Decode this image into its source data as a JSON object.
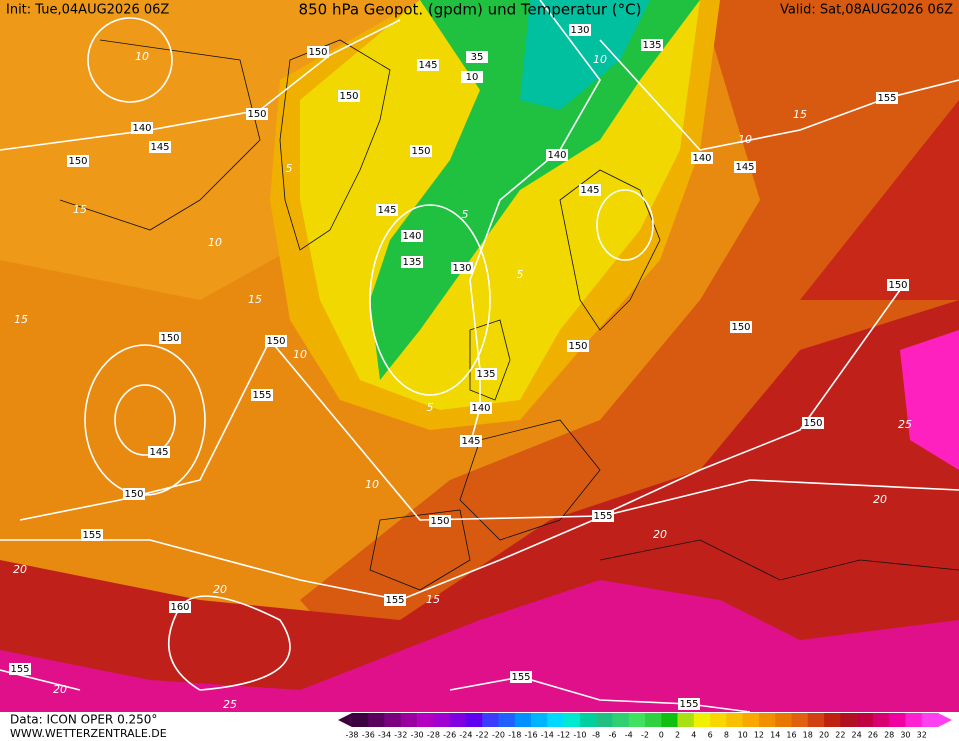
{
  "header": {
    "init": "Init: Tue,04AUG2026 06Z",
    "title": "850 hPa Geopot. (gpdm) und Temperatur (°C)",
    "valid": "Valid: Sat,08AUG2026 06Z"
  },
  "geopotential_labels": [
    "150",
    "145",
    "35",
    "10",
    "130",
    "135",
    "155",
    "150",
    "150",
    "140",
    "145",
    "150",
    "150",
    "140",
    "140",
    "145",
    "145",
    "145",
    "140",
    "135",
    "130",
    "150",
    "150",
    "150",
    "150",
    "150",
    "135",
    "155",
    "140",
    "145",
    "150",
    "145",
    "150",
    "150",
    "155",
    "155",
    "155",
    "160",
    "155",
    "155",
    "155"
  ],
  "temperature_labels": [
    "10",
    "10",
    "5",
    "15",
    "15",
    "10",
    "5",
    "5",
    "10",
    "15",
    "20",
    "20",
    "25",
    "20",
    "20",
    "25",
    "15",
    "10",
    "10",
    "5",
    "15",
    "20"
  ],
  "footer": {
    "source": "Data: ICON OPER 0.250°",
    "site": "WWW.WETTERZENTRALE.DE"
  },
  "color_scale": {
    "ticks": [
      -38,
      -36,
      -34,
      -32,
      -30,
      -28,
      -26,
      -24,
      -22,
      -20,
      -18,
      -16,
      -14,
      -12,
      -10,
      -8,
      -6,
      -4,
      -2,
      0,
      2,
      4,
      6,
      8,
      10,
      12,
      14,
      16,
      18,
      20,
      22,
      24,
      26,
      28,
      30,
      32
    ],
    "colors": [
      "#3d0040",
      "#5a005f",
      "#7a0080",
      "#9a00a0",
      "#b400c0",
      "#a000d0",
      "#8000e0",
      "#6000f0",
      "#3c3cff",
      "#2060ff",
      "#0090ff",
      "#00b4ff",
      "#00d8ff",
      "#00e8d0",
      "#00d0a0",
      "#20c080",
      "#30d070",
      "#40e060",
      "#30d040",
      "#10c010",
      "#a8e010",
      "#f0f000",
      "#f8d800",
      "#f8c000",
      "#f8a800",
      "#f09000",
      "#e87800",
      "#e06010",
      "#d04010",
      "#c02010",
      "#b01020",
      "#c00040",
      "#d80070",
      "#f000a0",
      "#ff20d0",
      "#ff40f0"
    ]
  }
}
